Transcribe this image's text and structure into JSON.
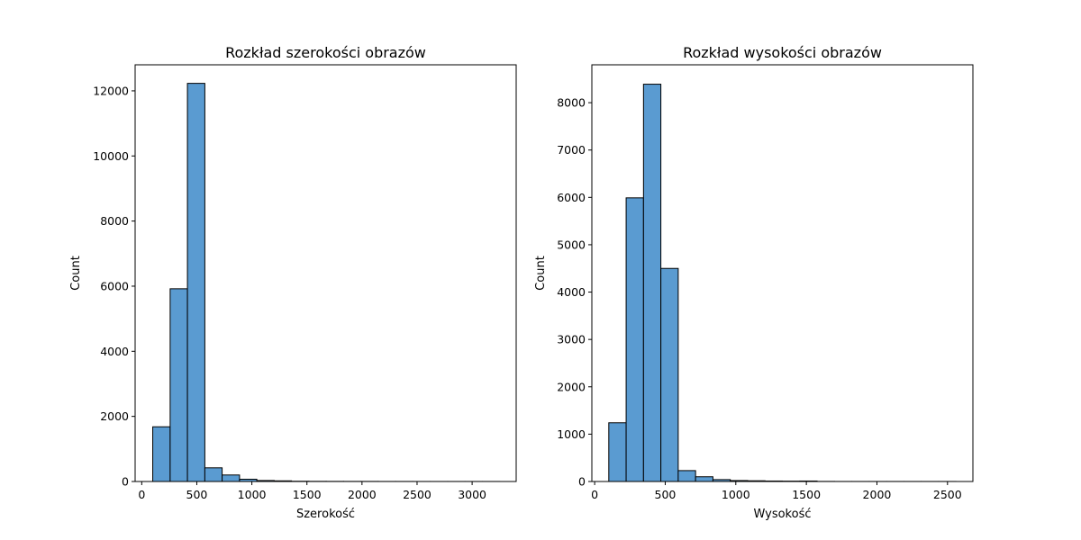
{
  "chart_data": [
    {
      "type": "bar",
      "title": "Rozkład szerokości obrazów",
      "xlabel": "Szerokość",
      "ylabel": "Count",
      "xlim": [
        -60,
        3400
      ],
      "ylim": [
        0,
        12800
      ],
      "xticks": [
        0,
        500,
        1000,
        1500,
        2000,
        2500,
        3000
      ],
      "yticks": [
        0,
        2000,
        4000,
        6000,
        8000,
        10000,
        12000
      ],
      "grid": false,
      "bar_color": "#5a9bd1",
      "bins": [
        {
          "x0": 100,
          "x1": 258,
          "value": 1680
        },
        {
          "x0": 258,
          "x1": 415,
          "value": 5920
        },
        {
          "x0": 415,
          "x1": 573,
          "value": 12230
        },
        {
          "x0": 573,
          "x1": 730,
          "value": 420
        },
        {
          "x0": 730,
          "x1": 888,
          "value": 200
        },
        {
          "x0": 888,
          "x1": 1045,
          "value": 70
        },
        {
          "x0": 1045,
          "x1": 1203,
          "value": 30
        },
        {
          "x0": 1203,
          "x1": 1360,
          "value": 20
        },
        {
          "x0": 1360,
          "x1": 1518,
          "value": 8
        },
        {
          "x0": 1518,
          "x1": 1675,
          "value": 5
        },
        {
          "x0": 1675,
          "x1": 1833,
          "value": 4
        },
        {
          "x0": 1833,
          "x1": 1990,
          "value": 3
        },
        {
          "x0": 1990,
          "x1": 2148,
          "value": 3
        },
        {
          "x0": 2148,
          "x1": 2305,
          "value": 2
        },
        {
          "x0": 2305,
          "x1": 2463,
          "value": 2
        },
        {
          "x0": 2463,
          "x1": 2620,
          "value": 1
        },
        {
          "x0": 2620,
          "x1": 2778,
          "value": 1
        },
        {
          "x0": 2778,
          "x1": 2935,
          "value": 1
        },
        {
          "x0": 2935,
          "x1": 3093,
          "value": 1
        },
        {
          "x0": 3093,
          "x1": 3250,
          "value": 1
        }
      ]
    },
    {
      "type": "bar",
      "title": "Rozkład wysokości obrazów",
      "xlabel": "Wysokość",
      "ylabel": "Count",
      "xlim": [
        -20,
        2680
      ],
      "ylim": [
        0,
        8800
      ],
      "xticks": [
        0,
        500,
        1000,
        1500,
        2000,
        2500
      ],
      "yticks": [
        0,
        1000,
        2000,
        3000,
        4000,
        5000,
        6000,
        7000,
        8000
      ],
      "grid": false,
      "bar_color": "#5a9bd1",
      "bins": [
        {
          "x0": 100,
          "x1": 223,
          "value": 1240
        },
        {
          "x0": 223,
          "x1": 346,
          "value": 5990
        },
        {
          "x0": 346,
          "x1": 469,
          "value": 8390
        },
        {
          "x0": 469,
          "x1": 592,
          "value": 4500
        },
        {
          "x0": 592,
          "x1": 715,
          "value": 230
        },
        {
          "x0": 715,
          "x1": 838,
          "value": 100
        },
        {
          "x0": 838,
          "x1": 961,
          "value": 40
        },
        {
          "x0": 961,
          "x1": 1084,
          "value": 20
        },
        {
          "x0": 1084,
          "x1": 1207,
          "value": 15
        },
        {
          "x0": 1207,
          "x1": 1330,
          "value": 10
        },
        {
          "x0": 1330,
          "x1": 1453,
          "value": 8
        },
        {
          "x0": 1453,
          "x1": 1576,
          "value": 10
        },
        {
          "x0": 1576,
          "x1": 1699,
          "value": 2
        },
        {
          "x0": 1699,
          "x1": 1822,
          "value": 1
        },
        {
          "x0": 1822,
          "x1": 1945,
          "value": 1
        },
        {
          "x0": 1945,
          "x1": 2068,
          "value": 1
        },
        {
          "x0": 2068,
          "x1": 2191,
          "value": 1
        },
        {
          "x0": 2191,
          "x1": 2314,
          "value": 1
        },
        {
          "x0": 2314,
          "x1": 2437,
          "value": 1
        },
        {
          "x0": 2437,
          "x1": 2560,
          "value": 1
        }
      ]
    }
  ]
}
